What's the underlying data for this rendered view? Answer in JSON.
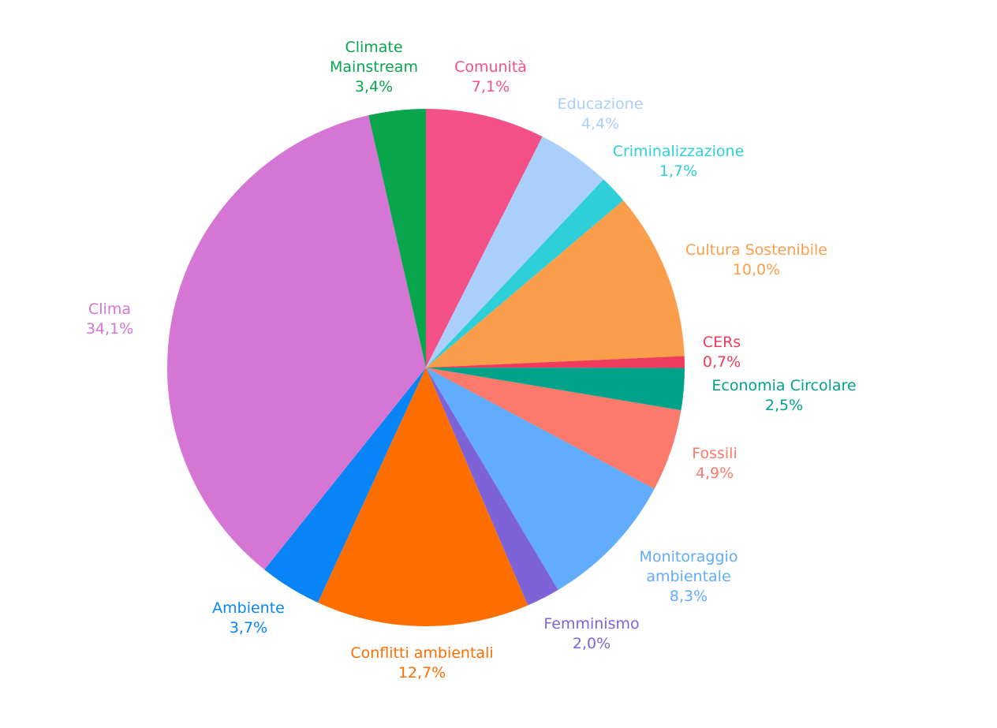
{
  "chart_data": {
    "type": "pie",
    "start_angle_deg": 0,
    "direction": "clockwise",
    "slices": [
      {
        "label": [
          "Comunità"
        ],
        "value_label": "7,1%",
        "value": 7.1,
        "color": "#F35088"
      },
      {
        "label": [
          "Educazione"
        ],
        "value_label": "4,4%",
        "value": 4.4,
        "color": "#ABCFFB"
      },
      {
        "label": [
          "Criminalizzazione"
        ],
        "value_label": "1,7%",
        "value": 1.7,
        "color": "#2ECFD8"
      },
      {
        "label": [
          "Cultura Sostenibile"
        ],
        "value_label": "10,0%",
        "value": 10.0,
        "color": "#FB9E4C"
      },
      {
        "label": [
          "CERs"
        ],
        "value_label": "0,7%",
        "value": 0.7,
        "color": "#F03C5C"
      },
      {
        "label": [
          "Economia Circolare"
        ],
        "value_label": "2,5%",
        "value": 2.5,
        "color": "#00A38A"
      },
      {
        "label": [
          "Fossili"
        ],
        "value_label": "4,9%",
        "value": 4.9,
        "color": "#FC7A6C"
      },
      {
        "label": [
          "Monitoraggio",
          "ambientale"
        ],
        "value_label": "8,3%",
        "value": 8.3,
        "color": "#62ACFC"
      },
      {
        "label": [
          "Femminismo"
        ],
        "value_label": "2,0%",
        "value": 2.0,
        "color": "#7E63D8"
      },
      {
        "label": [
          "Conflitti ambientali"
        ],
        "value_label": "12,7%",
        "value": 12.7,
        "color": "#FD6E00"
      },
      {
        "label": [
          "Ambiente"
        ],
        "value_label": "3,7%",
        "value": 3.7,
        "color": "#0884F6"
      },
      {
        "label": [
          "Clima"
        ],
        "value_label": "34,1%",
        "value": 34.1,
        "color": "#D576D5"
      },
      {
        "label": [
          "Climate",
          "Mainstream"
        ],
        "value_label": "3,4%",
        "value": 3.4,
        "color": "#08A54D"
      }
    ]
  }
}
